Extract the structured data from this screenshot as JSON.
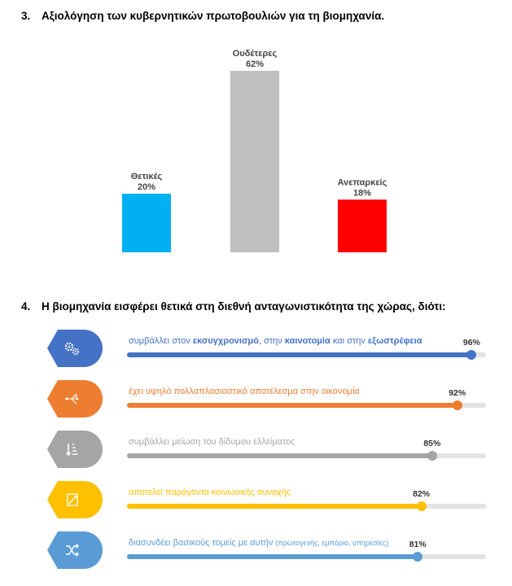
{
  "q3": {
    "number": "3.",
    "text": "Αξιολόγηση των κυβερνητικών πρωτοβουλιών για τη βιομηχανία."
  },
  "q4": {
    "number": "4.",
    "text": "Η βιομηχανία εισφέρει θετικά στη διεθνή ανταγωνιστικότητα της χώρας, διότι:"
  },
  "chart_data": [
    {
      "type": "bar",
      "title": "",
      "categories": [
        "Θετικές",
        "Ουδέτερες",
        "Ανεπαρκείς"
      ],
      "values": [
        20,
        62,
        18
      ],
      "value_labels": [
        "20%",
        "62%",
        "18%"
      ],
      "colors": [
        "#00b0f0",
        "#bfbfbf",
        "#ff0000"
      ],
      "ylim": [
        0,
        62
      ],
      "grid": false,
      "legend": "none"
    },
    {
      "type": "bar",
      "orientation": "horizontal",
      "title": "",
      "xlim": [
        0,
        100
      ],
      "series": [
        {
          "segments": [
            {
              "text": "συμβάλλει στον ",
              "bold": false
            },
            {
              "text": "εκσυγχρονισμό",
              "bold": true
            },
            {
              "text": ", στην ",
              "bold": false
            },
            {
              "text": "καινοτομία",
              "bold": true
            },
            {
              "text": " και στην ",
              "bold": false
            },
            {
              "text": "εξωστρέφεια",
              "bold": true
            }
          ],
          "value": 96,
          "label": "96%",
          "color": "#4472c4",
          "icon": "gears-icon"
        },
        {
          "segments": [
            {
              "text": "έχει υψηλό πολλαπλασιαστικό αποτέλεσμα στην οικονομία",
              "bold": false
            }
          ],
          "value": 92,
          "label": "92%",
          "color": "#ed7d31",
          "icon": "network-icon"
        },
        {
          "segments": [
            {
              "text": "συμβάλλει μείωση του δίδυμου ελλείματος",
              "bold": false
            }
          ],
          "value": 85,
          "label": "85%",
          "color": "#a5a5a5",
          "icon": "sort-down-icon"
        },
        {
          "segments": [
            {
              "text": "αποτελεί παράγοντα κοινωνικής συνοχής",
              "bold": false
            }
          ],
          "value": 82,
          "label": "82%",
          "color": "#ffc000",
          "icon": "pencil-doc-icon"
        },
        {
          "segments": [
            {
              "text": "διασυνδέει βασικούς τομείς με αυτήν ",
              "bold": false
            },
            {
              "text": "(πρωτογενής, εμπόριο, υπηρεσίες)",
              "bold": false,
              "small": true
            }
          ],
          "value": 81,
          "label": "81%",
          "color": "#5b9bd5",
          "icon": "shuffle-icon"
        }
      ]
    }
  ]
}
